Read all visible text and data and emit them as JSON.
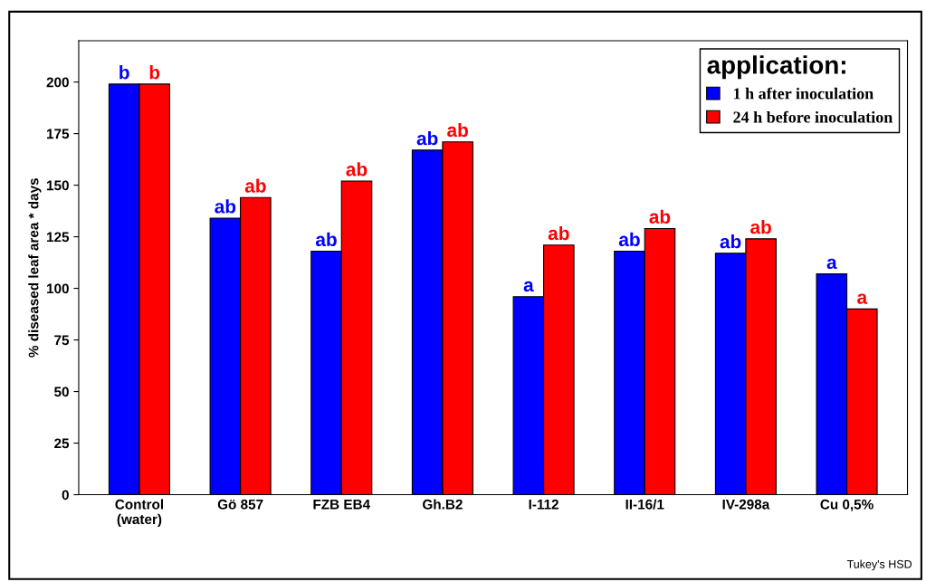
{
  "chart_data": {
    "type": "bar",
    "ylabel": "% diseased leaf area * days",
    "legend_title": "application:",
    "legend": "top right",
    "grid": false,
    "categories": [
      "Control\n(water)",
      "Gö 857",
      "FZB EB4",
      "Gh.B2",
      "I-112",
      "II-16/1",
      "IV-298a",
      "Cu 0,5%"
    ],
    "series": [
      {
        "name": "1 h after inoculation",
        "color": "#0000ff",
        "values": [
          199,
          134,
          118,
          167,
          96,
          118,
          117,
          107
        ],
        "value_labels": [
          "b",
          "ab",
          "ab",
          "ab",
          "a",
          "ab",
          "ab",
          "a"
        ]
      },
      {
        "name": "24 h before inoculation",
        "color": "#ff0000",
        "values": [
          199,
          144,
          152,
          171,
          121,
          129,
          124,
          90
        ],
        "value_labels": [
          "b",
          "ab",
          "ab",
          "ab",
          "ab",
          "ab",
          "ab",
          "a"
        ]
      }
    ],
    "ylim": [
      0,
      220
    ],
    "yticks": [
      0,
      25,
      50,
      75,
      100,
      125,
      150,
      175,
      200
    ],
    "annotations": [
      "Tukey's HSD"
    ]
  }
}
